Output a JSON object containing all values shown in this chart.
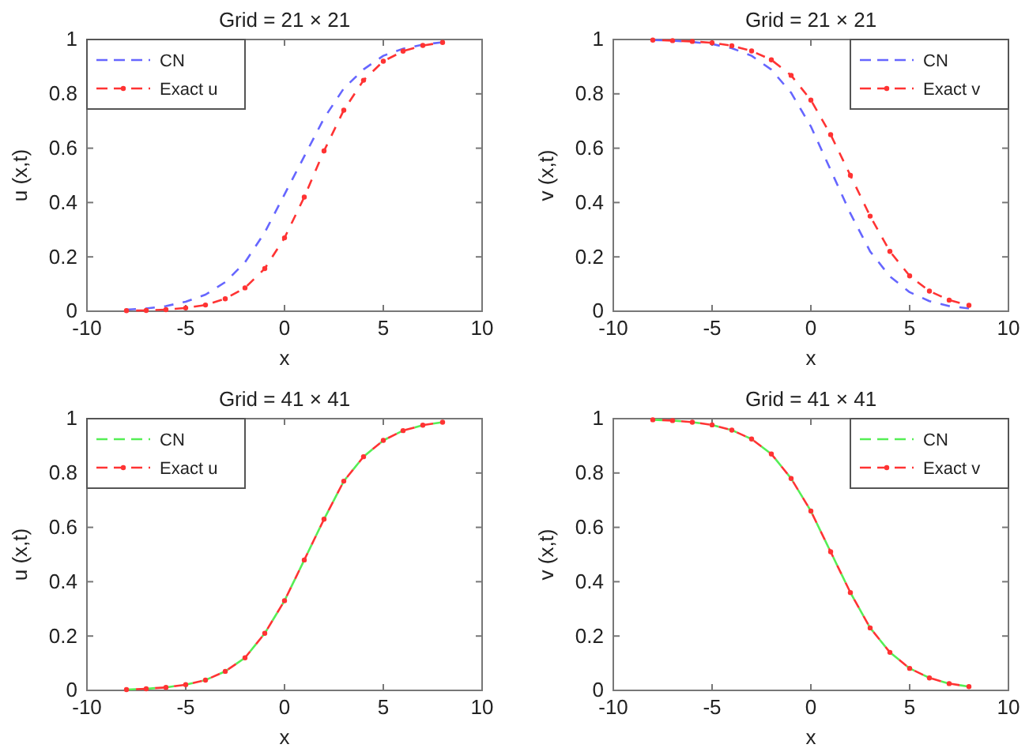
{
  "chart_data": [
    {
      "type": "line",
      "title": "Grid = 21 × 21",
      "xlabel": "x",
      "ylabel": "u (x,t)",
      "xlim": [
        -10,
        10
      ],
      "ylim": [
        0,
        1
      ],
      "xticks": [
        -10,
        -5,
        0,
        5,
        10
      ],
      "yticks": [
        0,
        0.2,
        0.4,
        0.6,
        0.8,
        1
      ],
      "legend": "top left",
      "x": [
        -8,
        -7,
        -6,
        -5,
        -4,
        -3,
        -2,
        -1,
        0,
        1,
        2,
        3,
        4,
        5,
        6,
        7,
        8
      ],
      "series": [
        {
          "name": "CN",
          "color": "#6666ff",
          "line_style": "dashed",
          "marker": "none",
          "values": [
            0.006,
            0.01,
            0.019,
            0.035,
            0.061,
            0.107,
            0.18,
            0.29,
            0.43,
            0.57,
            0.71,
            0.82,
            0.89,
            0.94,
            0.966,
            0.981,
            0.99
          ]
        },
        {
          "name": "Exact u",
          "color": "#ff3333",
          "line_style": "dashed",
          "marker": "circle",
          "values": [
            0.002,
            0.003,
            0.006,
            0.012,
            0.023,
            0.046,
            0.086,
            0.157,
            0.27,
            0.42,
            0.59,
            0.74,
            0.85,
            0.92,
            0.957,
            0.978,
            0.989
          ]
        }
      ]
    },
    {
      "type": "line",
      "title": "Grid = 21 × 21",
      "xlabel": "x",
      "ylabel": "v (x,t)",
      "xlim": [
        -10,
        10
      ],
      "ylim": [
        0,
        1
      ],
      "xticks": [
        -10,
        -5,
        0,
        5,
        10
      ],
      "yticks": [
        0,
        0.2,
        0.4,
        0.6,
        0.8,
        1
      ],
      "legend": "top right",
      "x": [
        -8,
        -7,
        -6,
        -5,
        -4,
        -3,
        -2,
        -1,
        0,
        1,
        2,
        3,
        4,
        5,
        6,
        7,
        8
      ],
      "series": [
        {
          "name": "CN",
          "color": "#6666ff",
          "line_style": "dashed",
          "marker": "none",
          "values": [
            0.998,
            0.996,
            0.991,
            0.983,
            0.968,
            0.94,
            0.889,
            0.804,
            0.68,
            0.52,
            0.36,
            0.22,
            0.128,
            0.07,
            0.037,
            0.019,
            0.01
          ]
        },
        {
          "name": "Exact v",
          "color": "#ff3333",
          "line_style": "dashed",
          "marker": "circle",
          "values": [
            0.998,
            0.996,
            0.993,
            0.988,
            0.977,
            0.958,
            0.925,
            0.868,
            0.777,
            0.65,
            0.5,
            0.35,
            0.22,
            0.13,
            0.074,
            0.041,
            0.022
          ]
        }
      ]
    },
    {
      "type": "line",
      "title": "Grid = 41 × 41",
      "xlabel": "x",
      "ylabel": "u (x,t)",
      "xlim": [
        -10,
        10
      ],
      "ylim": [
        0,
        1
      ],
      "xticks": [
        -10,
        -5,
        0,
        5,
        10
      ],
      "yticks": [
        0,
        0.2,
        0.4,
        0.6,
        0.8,
        1
      ],
      "legend": "top left",
      "x": [
        -8,
        -7,
        -6,
        -5,
        -4,
        -3,
        -2,
        -1,
        0,
        1,
        2,
        3,
        4,
        5,
        6,
        7,
        8
      ],
      "series": [
        {
          "name": "CN",
          "color": "#55ee55",
          "line_style": "dashed",
          "marker": "none",
          "values": [
            0.003,
            0.006,
            0.011,
            0.021,
            0.038,
            0.07,
            0.12,
            0.21,
            0.33,
            0.48,
            0.63,
            0.77,
            0.86,
            0.92,
            0.956,
            0.976,
            0.987
          ]
        },
        {
          "name": "Exact u",
          "color": "#ff3333",
          "line_style": "dashed",
          "marker": "circle",
          "values": [
            0.003,
            0.006,
            0.011,
            0.021,
            0.038,
            0.07,
            0.12,
            0.21,
            0.33,
            0.48,
            0.63,
            0.77,
            0.86,
            0.92,
            0.956,
            0.976,
            0.987
          ]
        }
      ]
    },
    {
      "type": "line",
      "title": "Grid = 41 × 41",
      "xlabel": "x",
      "ylabel": "v (x,t)",
      "xlim": [
        -10,
        10
      ],
      "ylim": [
        0,
        1
      ],
      "xticks": [
        -10,
        -5,
        0,
        5,
        10
      ],
      "yticks": [
        0,
        0.2,
        0.4,
        0.6,
        0.8,
        1
      ],
      "legend": "top right",
      "x": [
        -8,
        -7,
        -6,
        -5,
        -4,
        -3,
        -2,
        -1,
        0,
        1,
        2,
        3,
        4,
        5,
        6,
        7,
        8
      ],
      "series": [
        {
          "name": "CN",
          "color": "#55ee55",
          "line_style": "dashed",
          "marker": "none",
          "values": [
            0.996,
            0.993,
            0.987,
            0.977,
            0.958,
            0.925,
            0.87,
            0.78,
            0.66,
            0.51,
            0.36,
            0.23,
            0.14,
            0.081,
            0.046,
            0.025,
            0.014
          ]
        },
        {
          "name": "Exact v",
          "color": "#ff3333",
          "line_style": "dashed",
          "marker": "circle",
          "values": [
            0.996,
            0.993,
            0.987,
            0.977,
            0.958,
            0.925,
            0.87,
            0.78,
            0.66,
            0.51,
            0.36,
            0.23,
            0.14,
            0.081,
            0.046,
            0.025,
            0.014
          ]
        }
      ]
    }
  ]
}
